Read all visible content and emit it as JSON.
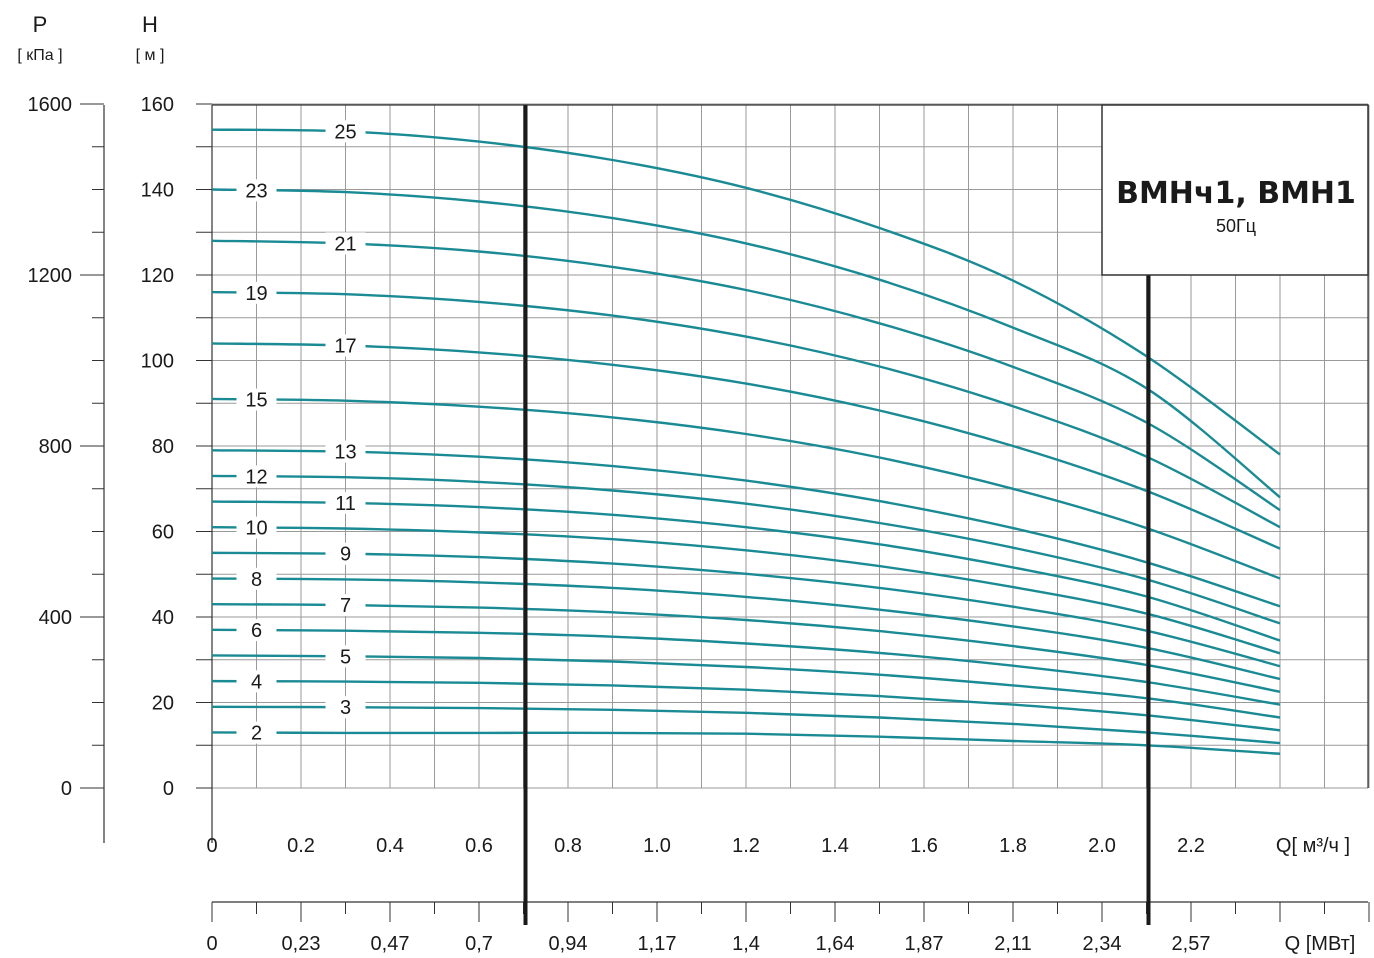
{
  "chart_data": {
    "type": "line",
    "title": "ВМНч1, ВМН1",
    "subtitle": "50Гц",
    "colors": {
      "curve": "#1a8a94",
      "grid": "#9a9a9a",
      "axis": "#333333",
      "marker": "#1a1a1a"
    },
    "y_left_outer": {
      "label": "P",
      "unit": "[ кПа ]",
      "ticks": [
        "0",
        "400",
        "800",
        "1200",
        "1600"
      ],
      "range": [
        0,
        1600
      ]
    },
    "y_left_inner": {
      "label": "H",
      "unit": "[ м ]",
      "ticks": [
        "0",
        "20",
        "40",
        "60",
        "80",
        "100",
        "120",
        "140",
        "160"
      ],
      "range": [
        0,
        160
      ]
    },
    "x_axis": {
      "label": "Q[ м³/ч ]",
      "range": [
        0,
        2.5
      ],
      "ticks": [
        "0",
        "0.2",
        "0.4",
        "0.6",
        "0.8",
        "1.0",
        "1.2",
        "1.4",
        "1.6",
        "1.8",
        "2.0",
        "2.2"
      ]
    },
    "x2_axis": {
      "label": "Q [МВт]",
      "ticks": [
        "0",
        "0,23",
        "0,47",
        "0,7",
        "0,94",
        "1,17",
        "1,4",
        "1,64",
        "1,87",
        "2,11",
        "2,34",
        "2,57"
      ]
    },
    "markers_x": [
      0.7,
      2.1
    ],
    "series": [
      {
        "name": "2",
        "label_x": 0.1,
        "x": [
          0,
          0.3,
          0.6,
          0.9,
          1.2,
          1.5,
          1.8,
          2.1,
          2.4
        ],
        "y": [
          13,
          12.9,
          12.9,
          12.9,
          12.7,
          12,
          11,
          10,
          8
        ]
      },
      {
        "name": "3",
        "label_x": 0.3,
        "x": [
          0,
          0.3,
          0.6,
          0.9,
          1.2,
          1.5,
          1.8,
          2.1,
          2.4
        ],
        "y": [
          19,
          18.9,
          18.7,
          18.3,
          17.6,
          16.5,
          15,
          13,
          10.5
        ]
      },
      {
        "name": "4",
        "label_x": 0.1,
        "x": [
          0,
          0.3,
          0.6,
          0.9,
          1.2,
          1.5,
          1.8,
          2.1,
          2.4
        ],
        "y": [
          25,
          24.9,
          24.6,
          24,
          23,
          21.5,
          19.5,
          17,
          13.5
        ]
      },
      {
        "name": "5",
        "label_x": 0.3,
        "x": [
          0,
          0.3,
          0.6,
          0.9,
          1.2,
          1.5,
          1.8,
          2.1,
          2.4
        ],
        "y": [
          31,
          30.8,
          30.4,
          29.6,
          28.3,
          26.5,
          24,
          21,
          16.5
        ]
      },
      {
        "name": "6",
        "label_x": 0.1,
        "x": [
          0,
          0.3,
          0.6,
          0.9,
          1.2,
          1.5,
          1.8,
          2.1,
          2.4
        ],
        "y": [
          37,
          36.8,
          36.3,
          35.4,
          33.8,
          31.6,
          28.6,
          24.8,
          19.5
        ]
      },
      {
        "name": "7",
        "label_x": 0.3,
        "x": [
          0,
          0.3,
          0.6,
          0.9,
          1.2,
          1.5,
          1.8,
          2.1,
          2.4
        ],
        "y": [
          43,
          42.8,
          42.2,
          41.1,
          39.3,
          36.7,
          33.2,
          28.8,
          22.5
        ]
      },
      {
        "name": "8",
        "label_x": 0.1,
        "x": [
          0,
          0.3,
          0.6,
          0.9,
          1.2,
          1.5,
          1.8,
          2.1,
          2.4
        ],
        "y": [
          49,
          48.8,
          48.1,
          46.8,
          44.7,
          41.7,
          37.8,
          32.8,
          25.5
        ]
      },
      {
        "name": "9",
        "label_x": 0.3,
        "x": [
          0,
          0.3,
          0.6,
          0.9,
          1.2,
          1.5,
          1.8,
          2.1,
          2.4
        ],
        "y": [
          55,
          54.8,
          54,
          52.5,
          50.1,
          46.8,
          42.4,
          36.8,
          28.5
        ]
      },
      {
        "name": "10",
        "label_x": 0.1,
        "x": [
          0,
          0.3,
          0.6,
          0.9,
          1.2,
          1.5,
          1.8,
          2.1,
          2.4
        ],
        "y": [
          61,
          60.7,
          59.8,
          58.2,
          55.6,
          51.9,
          47,
          40.8,
          31.5
        ]
      },
      {
        "name": "11",
        "label_x": 0.3,
        "x": [
          0,
          0.3,
          0.6,
          0.9,
          1.2,
          1.5,
          1.8,
          2.1,
          2.4
        ],
        "y": [
          67,
          66.7,
          65.7,
          63.9,
          61,
          57,
          51.6,
          44.8,
          34.5
        ]
      },
      {
        "name": "12",
        "label_x": 0.1,
        "x": [
          0,
          0.3,
          0.6,
          0.9,
          1.2,
          1.5,
          1.8,
          2.1,
          2.4
        ],
        "y": [
          73,
          72.7,
          71.6,
          69.6,
          66.5,
          62,
          56.2,
          48.8,
          38.5
        ]
      },
      {
        "name": "13",
        "label_x": 0.3,
        "x": [
          0,
          0.3,
          0.6,
          0.9,
          1.2,
          1.5,
          1.8,
          2.1,
          2.4
        ],
        "y": [
          79,
          78.7,
          77.5,
          75.3,
          71.9,
          67.1,
          60.8,
          52.8,
          42.5
        ]
      },
      {
        "name": "15",
        "label_x": 0.1,
        "x": [
          0,
          0.3,
          0.6,
          0.9,
          1.2,
          1.5,
          1.8,
          2.1,
          2.4
        ],
        "y": [
          91,
          90.6,
          89.2,
          86.7,
          82.8,
          77.3,
          70,
          60.8,
          49
        ]
      },
      {
        "name": "17",
        "label_x": 0.3,
        "x": [
          0,
          0.3,
          0.6,
          0.9,
          1.2,
          1.5,
          1.8,
          2.1,
          2.4
        ],
        "y": [
          104,
          103.5,
          101.9,
          99,
          94.6,
          88.3,
          80,
          69.5,
          56
        ]
      },
      {
        "name": "19",
        "label_x": 0.1,
        "x": [
          0,
          0.3,
          0.6,
          0.9,
          1.2,
          1.5,
          1.8,
          2.1,
          2.4
        ],
        "y": [
          116,
          115.5,
          113.7,
          110.5,
          105.6,
          98.6,
          89.3,
          77.5,
          61
        ]
      },
      {
        "name": "21",
        "label_x": 0.3,
        "x": [
          0,
          0.3,
          0.6,
          0.9,
          1.2,
          1.5,
          1.8,
          2.1,
          2.4
        ],
        "y": [
          128,
          127.4,
          125.5,
          121.9,
          116.5,
          108.7,
          98.5,
          85.5,
          65
        ]
      },
      {
        "name": "23",
        "label_x": 0.1,
        "x": [
          0,
          0.3,
          0.6,
          0.9,
          1.2,
          1.5,
          1.8,
          2.1,
          2.4
        ],
        "y": [
          140,
          139.4,
          137.2,
          133.3,
          127.4,
          118.9,
          107.7,
          93.5,
          68
        ]
      },
      {
        "name": "25",
        "label_x": 0.3,
        "x": [
          0,
          0.3,
          0.6,
          0.9,
          1.2,
          1.5,
          1.8,
          2.1,
          2.4
        ],
        "y": [
          154,
          153.6,
          151.2,
          146.9,
          140.4,
          131,
          118.7,
          101,
          78
        ]
      }
    ]
  }
}
